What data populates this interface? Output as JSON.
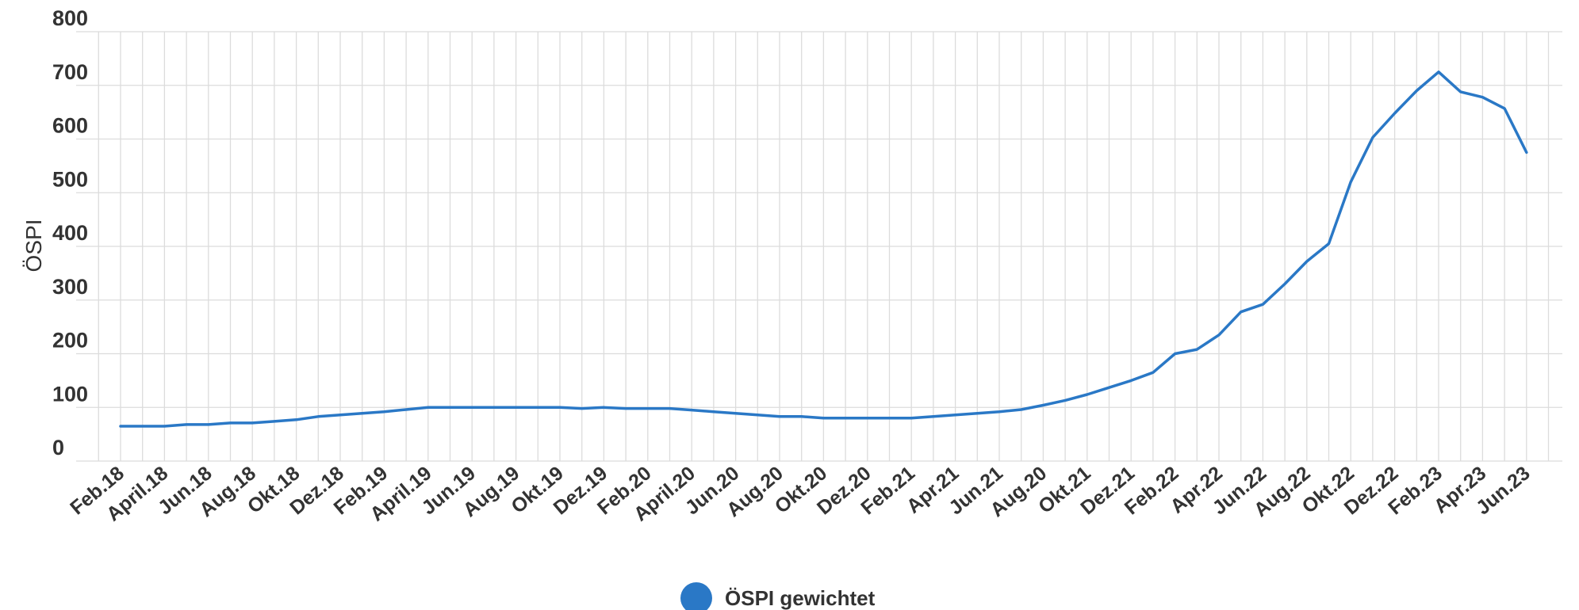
{
  "chart_data": {
    "type": "line",
    "ylabel": "ÖSPI",
    "xlabel": "",
    "ylim": [
      0,
      800
    ],
    "yticks": [
      "0",
      "100",
      "200",
      "300",
      "400",
      "500",
      "600",
      "700",
      "800"
    ],
    "grid": true,
    "legend_position": "bottom-center",
    "categories": [
      "Feb.18",
      "April.18",
      "Jun.18",
      "Aug.18",
      "Okt.18",
      "Dez.18",
      "Feb.19",
      "April.19",
      "Jun.19",
      "Aug.19",
      "Okt.19",
      "Dez.19",
      "Feb.20",
      "April.20",
      "Jun.20",
      "Aug.20",
      "Okt.20",
      "Dez.20",
      "Feb.21",
      "Apr.21",
      "Jun.21",
      "Aug.20",
      "Okt.21",
      "Dez.21",
      "Feb.22",
      "Apr.22",
      "Jun.22",
      "Aug.22",
      "Okt.22",
      "Dez.22",
      "Feb.23",
      "Apr.23",
      "Jun.23"
    ],
    "series": [
      {
        "name": "ÖSPI gewichtet",
        "color": "#2a78c6",
        "points": [
          [
            0,
            65
          ],
          [
            0.5,
            65
          ],
          [
            1,
            65
          ],
          [
            1.5,
            68
          ],
          [
            2,
            68
          ],
          [
            2.5,
            71
          ],
          [
            3,
            71
          ],
          [
            3.5,
            74
          ],
          [
            4,
            77
          ],
          [
            4.5,
            83
          ],
          [
            5,
            86
          ],
          [
            5.5,
            89
          ],
          [
            6,
            92
          ],
          [
            6.5,
            96
          ],
          [
            7,
            100
          ],
          [
            7.5,
            100
          ],
          [
            8,
            100
          ],
          [
            8.5,
            100
          ],
          [
            9,
            100
          ],
          [
            9.5,
            100
          ],
          [
            10,
            100
          ],
          [
            10.5,
            98
          ],
          [
            11,
            100
          ],
          [
            11.5,
            98
          ],
          [
            12,
            98
          ],
          [
            12.5,
            98
          ],
          [
            13,
            95
          ],
          [
            13.5,
            92
          ],
          [
            14,
            89
          ],
          [
            14.5,
            86
          ],
          [
            15,
            83
          ],
          [
            15.5,
            83
          ],
          [
            16,
            80
          ],
          [
            16.5,
            80
          ],
          [
            17,
            80
          ],
          [
            17.5,
            80
          ],
          [
            18,
            80
          ],
          [
            18.5,
            83
          ],
          [
            19,
            86
          ],
          [
            19.5,
            89
          ],
          [
            20,
            92
          ],
          [
            20.5,
            96
          ],
          [
            21,
            104
          ],
          [
            21.5,
            113
          ],
          [
            22,
            124
          ],
          [
            22.5,
            137
          ],
          [
            23,
            150
          ],
          [
            23.5,
            165
          ],
          [
            24,
            200
          ],
          [
            24.5,
            208
          ],
          [
            25,
            235
          ],
          [
            25.5,
            278
          ],
          [
            26,
            292
          ],
          [
            26.5,
            330
          ],
          [
            27,
            372
          ],
          [
            27.5,
            405
          ],
          [
            28,
            520
          ],
          [
            28.5,
            603
          ],
          [
            29,
            648
          ],
          [
            29.5,
            690
          ],
          [
            30,
            725
          ],
          [
            30.5,
            688
          ],
          [
            31,
            678
          ],
          [
            31.5,
            657
          ],
          [
            32,
            575
          ]
        ]
      }
    ]
  }
}
